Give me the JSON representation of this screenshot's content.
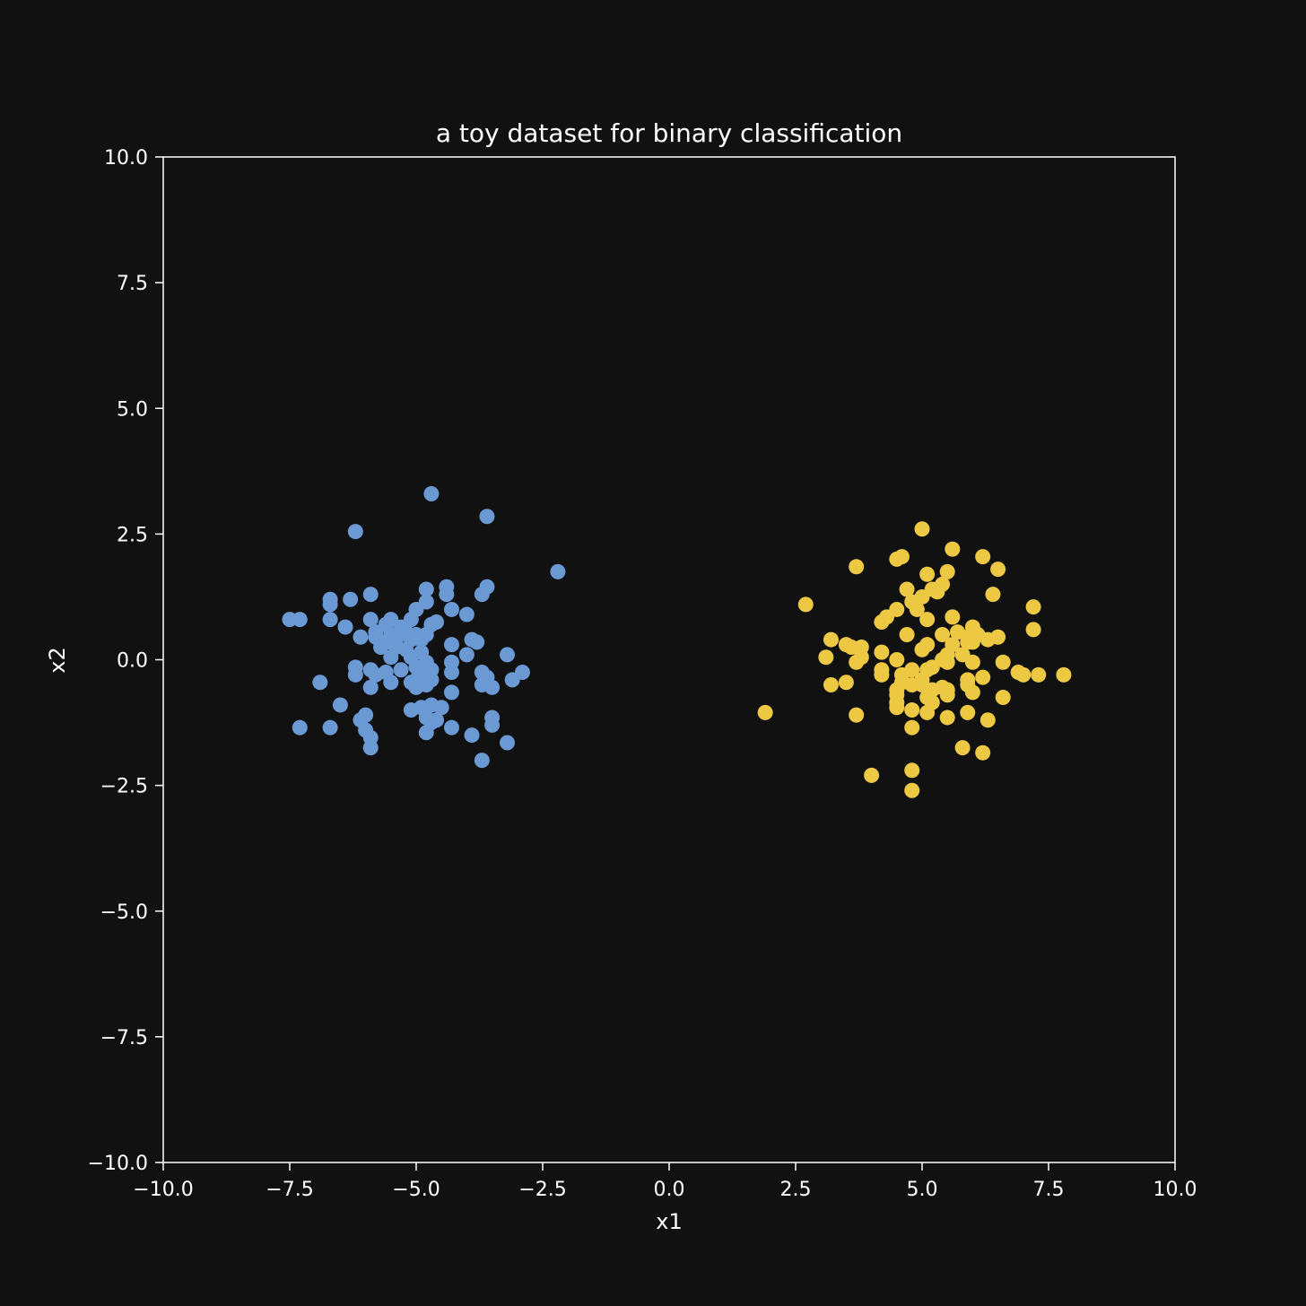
{
  "chart_data": {
    "type": "scatter",
    "title": "a toy dataset for binary classification",
    "xlabel": "x1",
    "ylabel": "x2",
    "xlim": [
      -10,
      10
    ],
    "ylim": [
      -10,
      10
    ],
    "grid": false,
    "x_ticks": [
      -10.0,
      -7.5,
      -5.0,
      -2.5,
      0.0,
      2.5,
      5.0,
      7.5,
      10.0
    ],
    "x_tick_labels": [
      "−10.0",
      "−7.5",
      "−5.0",
      "−2.5",
      "0.0",
      "2.5",
      "5.0",
      "7.5",
      "10.0"
    ],
    "y_ticks": [
      10.0,
      7.5,
      5.0,
      2.5,
      0.0,
      -2.5,
      -5.0,
      -7.5,
      -10.0
    ],
    "y_tick_labels": [
      "10.0",
      "7.5",
      "5.0",
      "2.5",
      "0.0",
      "−2.5",
      "−5.0",
      "−7.5",
      "−10.0"
    ],
    "series": [
      {
        "color": "#6a99d4",
        "points": [
          [
            -4.7,
            3.3
          ],
          [
            -3.6,
            2.85
          ],
          [
            -6.2,
            2.55
          ],
          [
            -2.2,
            1.75
          ],
          [
            -4.4,
            1.45
          ],
          [
            -3.6,
            1.45
          ],
          [
            -4.8,
            1.4
          ],
          [
            -4.4,
            1.3
          ],
          [
            -3.7,
            1.3
          ],
          [
            -5.9,
            1.3
          ],
          [
            -6.7,
            1.2
          ],
          [
            -6.3,
            1.2
          ],
          [
            -4.8,
            1.15
          ],
          [
            -6.7,
            1.1
          ],
          [
            -5.0,
            1.0
          ],
          [
            -4.3,
            1.0
          ],
          [
            -4.0,
            0.9
          ],
          [
            -7.5,
            0.8
          ],
          [
            -7.3,
            0.8
          ],
          [
            -6.7,
            0.8
          ],
          [
            -5.9,
            0.8
          ],
          [
            -5.5,
            0.8
          ],
          [
            -5.1,
            0.8
          ],
          [
            -4.6,
            0.75
          ],
          [
            -5.6,
            0.7
          ],
          [
            -4.7,
            0.7
          ],
          [
            -6.4,
            0.65
          ],
          [
            -5.3,
            0.65
          ],
          [
            -5.8,
            0.55
          ],
          [
            -5.2,
            0.55
          ],
          [
            -5.5,
            0.5
          ],
          [
            -5.0,
            0.5
          ],
          [
            -4.8,
            0.5
          ],
          [
            -6.1,
            0.45
          ],
          [
            -5.8,
            0.45
          ],
          [
            -5.4,
            0.4
          ],
          [
            -5.1,
            0.4
          ],
          [
            -4.9,
            0.4
          ],
          [
            -3.9,
            0.4
          ],
          [
            -5.6,
            0.35
          ],
          [
            -4.3,
            0.3
          ],
          [
            -3.8,
            0.35
          ],
          [
            -5.7,
            0.25
          ],
          [
            -5.4,
            0.25
          ],
          [
            -5.2,
            0.2
          ],
          [
            -4.9,
            0.15
          ],
          [
            -4.0,
            0.1
          ],
          [
            -3.2,
            0.1
          ],
          [
            -5.5,
            0.05
          ],
          [
            -5.1,
            0.05
          ],
          [
            -4.8,
            -0.05
          ],
          [
            -4.3,
            -0.05
          ],
          [
            -5.0,
            -0.15
          ],
          [
            -4.7,
            -0.2
          ],
          [
            -6.2,
            -0.15
          ],
          [
            -5.9,
            -0.2
          ],
          [
            -5.3,
            -0.2
          ],
          [
            -5.6,
            -0.25
          ],
          [
            -3.7,
            -0.25
          ],
          [
            -2.9,
            -0.25
          ],
          [
            -6.2,
            -0.3
          ],
          [
            -5.8,
            -0.3
          ],
          [
            -4.9,
            -0.3
          ],
          [
            -4.3,
            -0.25
          ],
          [
            -3.6,
            -0.35
          ],
          [
            -5.0,
            -0.4
          ],
          [
            -4.7,
            -0.4
          ],
          [
            -6.9,
            -0.45
          ],
          [
            -5.5,
            -0.45
          ],
          [
            -5.1,
            -0.45
          ],
          [
            -3.1,
            -0.4
          ],
          [
            -3.7,
            -0.5
          ],
          [
            -5.9,
            -0.55
          ],
          [
            -5.0,
            -0.55
          ],
          [
            -4.8,
            -0.5
          ],
          [
            -3.5,
            -0.55
          ],
          [
            -4.3,
            -0.65
          ],
          [
            -6.5,
            -0.9
          ],
          [
            -4.7,
            -0.9
          ],
          [
            -4.9,
            -0.95
          ],
          [
            -4.5,
            -0.95
          ],
          [
            -5.1,
            -1.0
          ],
          [
            -6.0,
            -1.1
          ],
          [
            -4.8,
            -1.15
          ],
          [
            -6.1,
            -1.2
          ],
          [
            -4.6,
            -1.2
          ],
          [
            -3.5,
            -1.15
          ],
          [
            -4.7,
            -1.25
          ],
          [
            -7.3,
            -1.35
          ],
          [
            -6.7,
            -1.35
          ],
          [
            -6.0,
            -1.4
          ],
          [
            -4.3,
            -1.35
          ],
          [
            -3.5,
            -1.3
          ],
          [
            -4.8,
            -1.45
          ],
          [
            -3.9,
            -1.5
          ],
          [
            -5.9,
            -1.55
          ],
          [
            -5.9,
            -1.75
          ],
          [
            -3.2,
            -1.65
          ],
          [
            -3.7,
            -2.0
          ]
        ]
      },
      {
        "color": "#ecc843",
        "points": [
          [
            5.0,
            2.6
          ],
          [
            5.6,
            2.2
          ],
          [
            6.2,
            2.05
          ],
          [
            4.6,
            2.05
          ],
          [
            4.5,
            2.0
          ],
          [
            3.7,
            1.85
          ],
          [
            6.5,
            1.8
          ],
          [
            5.5,
            1.75
          ],
          [
            5.1,
            1.7
          ],
          [
            5.4,
            1.5
          ],
          [
            5.2,
            1.4
          ],
          [
            5.3,
            1.35
          ],
          [
            4.7,
            1.4
          ],
          [
            6.4,
            1.3
          ],
          [
            5.0,
            1.25
          ],
          [
            4.8,
            1.15
          ],
          [
            2.7,
            1.1
          ],
          [
            7.2,
            1.05
          ],
          [
            4.5,
            1.0
          ],
          [
            4.9,
            1.0
          ],
          [
            4.3,
            0.85
          ],
          [
            5.6,
            0.85
          ],
          [
            5.1,
            0.8
          ],
          [
            4.2,
            0.75
          ],
          [
            6.0,
            0.65
          ],
          [
            7.2,
            0.6
          ],
          [
            5.7,
            0.55
          ],
          [
            6.1,
            0.5
          ],
          [
            4.7,
            0.5
          ],
          [
            5.4,
            0.5
          ],
          [
            5.9,
            0.45
          ],
          [
            6.5,
            0.45
          ],
          [
            3.2,
            0.4
          ],
          [
            6.3,
            0.4
          ],
          [
            5.9,
            0.35
          ],
          [
            6.0,
            0.35
          ],
          [
            3.5,
            0.3
          ],
          [
            5.1,
            0.3
          ],
          [
            5.6,
            0.3
          ],
          [
            3.6,
            0.25
          ],
          [
            3.8,
            0.25
          ],
          [
            5.0,
            0.2
          ],
          [
            4.2,
            0.15
          ],
          [
            5.5,
            0.1
          ],
          [
            5.8,
            0.1
          ],
          [
            3.8,
            0.05
          ],
          [
            3.1,
            0.05
          ],
          [
            5.4,
            0.0
          ],
          [
            4.5,
            0.0
          ],
          [
            5.5,
            -0.05
          ],
          [
            6.0,
            -0.05
          ],
          [
            3.7,
            -0.05
          ],
          [
            6.6,
            -0.05
          ],
          [
            5.2,
            -0.15
          ],
          [
            4.8,
            -0.2
          ],
          [
            4.2,
            -0.2
          ],
          [
            5.1,
            -0.2
          ],
          [
            6.9,
            -0.25
          ],
          [
            7.0,
            -0.3
          ],
          [
            7.3,
            -0.3
          ],
          [
            7.8,
            -0.3
          ],
          [
            4.6,
            -0.3
          ],
          [
            6.2,
            -0.35
          ],
          [
            4.2,
            -0.3
          ],
          [
            5.0,
            -0.4
          ],
          [
            5.9,
            -0.4
          ],
          [
            3.5,
            -0.45
          ],
          [
            4.6,
            -0.45
          ],
          [
            4.8,
            -0.5
          ],
          [
            5.0,
            -0.5
          ],
          [
            3.2,
            -0.5
          ],
          [
            5.9,
            -0.5
          ],
          [
            5.4,
            -0.55
          ],
          [
            4.5,
            -0.6
          ],
          [
            5.2,
            -0.6
          ],
          [
            5.5,
            -0.6
          ],
          [
            6.0,
            -0.65
          ],
          [
            4.5,
            -0.7
          ],
          [
            5.5,
            -0.7
          ],
          [
            5.1,
            -0.75
          ],
          [
            6.6,
            -0.75
          ],
          [
            4.5,
            -0.85
          ],
          [
            5.2,
            -0.85
          ],
          [
            4.5,
            -0.95
          ],
          [
            4.8,
            -1.0
          ],
          [
            5.1,
            -1.05
          ],
          [
            5.9,
            -1.05
          ],
          [
            1.9,
            -1.05
          ],
          [
            3.7,
            -1.1
          ],
          [
            5.5,
            -1.15
          ],
          [
            6.3,
            -1.2
          ],
          [
            4.8,
            -1.35
          ],
          [
            5.8,
            -1.75
          ],
          [
            6.2,
            -1.85
          ],
          [
            4.8,
            -2.2
          ],
          [
            4.0,
            -2.3
          ],
          [
            4.8,
            -2.6
          ]
        ]
      }
    ]
  }
}
